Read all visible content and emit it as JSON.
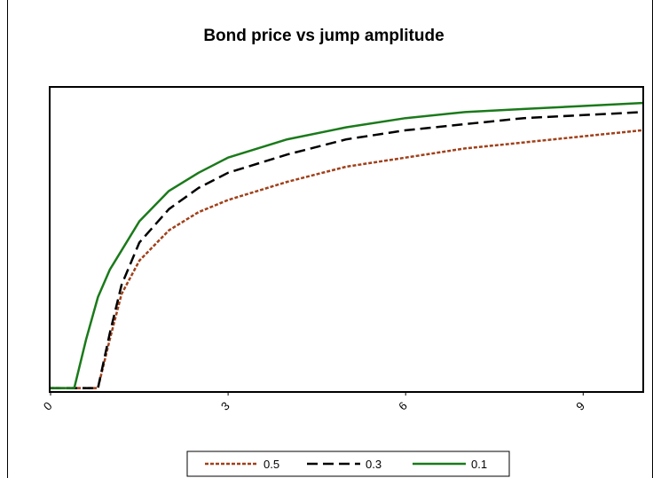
{
  "chart_data": {
    "type": "line",
    "title": "Bond price vs jump amplitude",
    "xlabel": "",
    "ylabel": "",
    "xlim": [
      0,
      10
    ],
    "ylim": [
      0,
      1
    ],
    "xticks": [
      "0",
      "3",
      "6",
      "9"
    ],
    "xtick_values": [
      0,
      3,
      6,
      9
    ],
    "y_tick_labels_shown": false,
    "grid": false,
    "legend_position": "bottom",
    "series": [
      {
        "name": "0.5",
        "color": "#a0401a",
        "style": "dotted",
        "points": [
          [
            0,
            0.01
          ],
          [
            0.8,
            0.01
          ],
          [
            1.0,
            0.17
          ],
          [
            1.2,
            0.32
          ],
          [
            1.5,
            0.43
          ],
          [
            2.0,
            0.53
          ],
          [
            2.5,
            0.59
          ],
          [
            3.0,
            0.63
          ],
          [
            4.0,
            0.69
          ],
          [
            5.0,
            0.74
          ],
          [
            6.0,
            0.77
          ],
          [
            7.0,
            0.8
          ],
          [
            8.0,
            0.82
          ],
          [
            9.0,
            0.84
          ],
          [
            10.0,
            0.86
          ]
        ]
      },
      {
        "name": "0.3",
        "color": "#000000",
        "style": "dashed",
        "points": [
          [
            0,
            0.01
          ],
          [
            0.8,
            0.01
          ],
          [
            1.0,
            0.19
          ],
          [
            1.2,
            0.35
          ],
          [
            1.5,
            0.49
          ],
          [
            2.0,
            0.6
          ],
          [
            2.5,
            0.67
          ],
          [
            3.0,
            0.72
          ],
          [
            4.0,
            0.78
          ],
          [
            5.0,
            0.83
          ],
          [
            6.0,
            0.86
          ],
          [
            7.0,
            0.88
          ],
          [
            8.0,
            0.9
          ],
          [
            9.0,
            0.91
          ],
          [
            10.0,
            0.92
          ]
        ]
      },
      {
        "name": "0.1",
        "color": "#1a7a1a",
        "style": "solid",
        "points": [
          [
            0,
            0.01
          ],
          [
            0.4,
            0.01
          ],
          [
            0.6,
            0.17
          ],
          [
            0.8,
            0.31
          ],
          [
            1.0,
            0.4
          ],
          [
            1.5,
            0.56
          ],
          [
            2.0,
            0.66
          ],
          [
            2.5,
            0.72
          ],
          [
            3.0,
            0.77
          ],
          [
            4.0,
            0.83
          ],
          [
            5.0,
            0.87
          ],
          [
            6.0,
            0.9
          ],
          [
            7.0,
            0.92
          ],
          [
            8.0,
            0.93
          ],
          [
            9.0,
            0.94
          ],
          [
            10.0,
            0.95
          ]
        ]
      }
    ]
  }
}
